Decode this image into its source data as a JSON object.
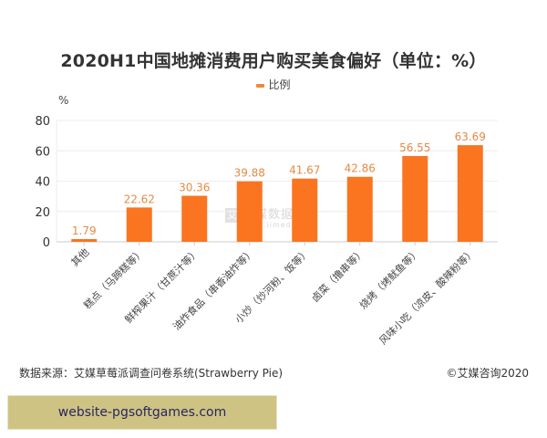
{
  "title": "2020H1中国地摊消费用户购买美食偏好（单位：%）",
  "legend": {
    "label": "比例",
    "color": "#f0873a"
  },
  "y_unit": "%",
  "watermark": {
    "logo_glyph": "艾",
    "text": "艾媒数据中心",
    "sub": "data.iimedia.cn"
  },
  "footer": {
    "source": "数据来源：艾媒草莓派调查问卷系统(Strawberry Pie)",
    "copyright": "©艾媒咨询2020"
  },
  "ad_banner": {
    "text": "website-pgsoftgames.com"
  },
  "colors": {
    "bar": "#fb7420",
    "label": "#e58a45",
    "grid": "#eeeeee",
    "axis": "#cccccc"
  },
  "chart_data": {
    "type": "bar",
    "title": "2020H1中国地摊消费用户购买美食偏好（单位：%）",
    "xlabel": "",
    "ylabel": "%",
    "ylim": [
      0,
      80
    ],
    "yticks": [
      0,
      20,
      40,
      60,
      80
    ],
    "grid": true,
    "legend_position": "top",
    "categories": [
      "其他",
      "糕点（马蹄糕等）",
      "鲜榨果汁（甘蔗汁等）",
      "油炸食品（串香油炸等）",
      "小炒（炒河粉、饭等）",
      "卤菜（撸串等）",
      "烧烤（烤鱿鱼等）",
      "风味小吃（凉皮、酸辣粉等）"
    ],
    "series": [
      {
        "name": "比例",
        "values": [
          1.79,
          22.62,
          30.36,
          39.88,
          41.67,
          42.86,
          56.55,
          63.69
        ]
      }
    ],
    "value_labels": [
      "1.79",
      "22.62",
      "30.36",
      "39.88",
      "41.67",
      "42.86",
      "56.55",
      "63.69"
    ]
  }
}
